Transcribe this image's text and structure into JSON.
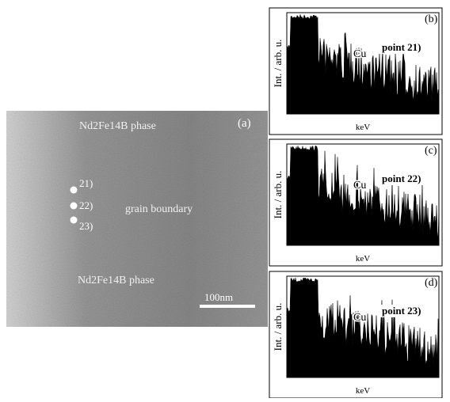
{
  "image": {
    "panel_label": "(a)",
    "phase_top": "Nd2Fe14B phase",
    "phase_bottom": "Nd2Fe14B phase",
    "boundary": "grain boundary",
    "points": [
      "21)",
      "22)",
      "23)"
    ],
    "scale_bar": "100nm"
  },
  "spectra": [
    {
      "panel_label": "(b)",
      "point": "point 21)",
      "peak": "Cu",
      "y_label": "Int. / arb. u.",
      "x_label": "keV"
    },
    {
      "panel_label": "(c)",
      "point": "point 22)",
      "peak": "Cu",
      "y_label": "Int. / arb. u.",
      "x_label": "keV"
    },
    {
      "panel_label": "(d)",
      "point": "point 23)",
      "peak": "Cu",
      "y_label": "Int. / arb. u.",
      "x_label": "keV"
    }
  ]
}
